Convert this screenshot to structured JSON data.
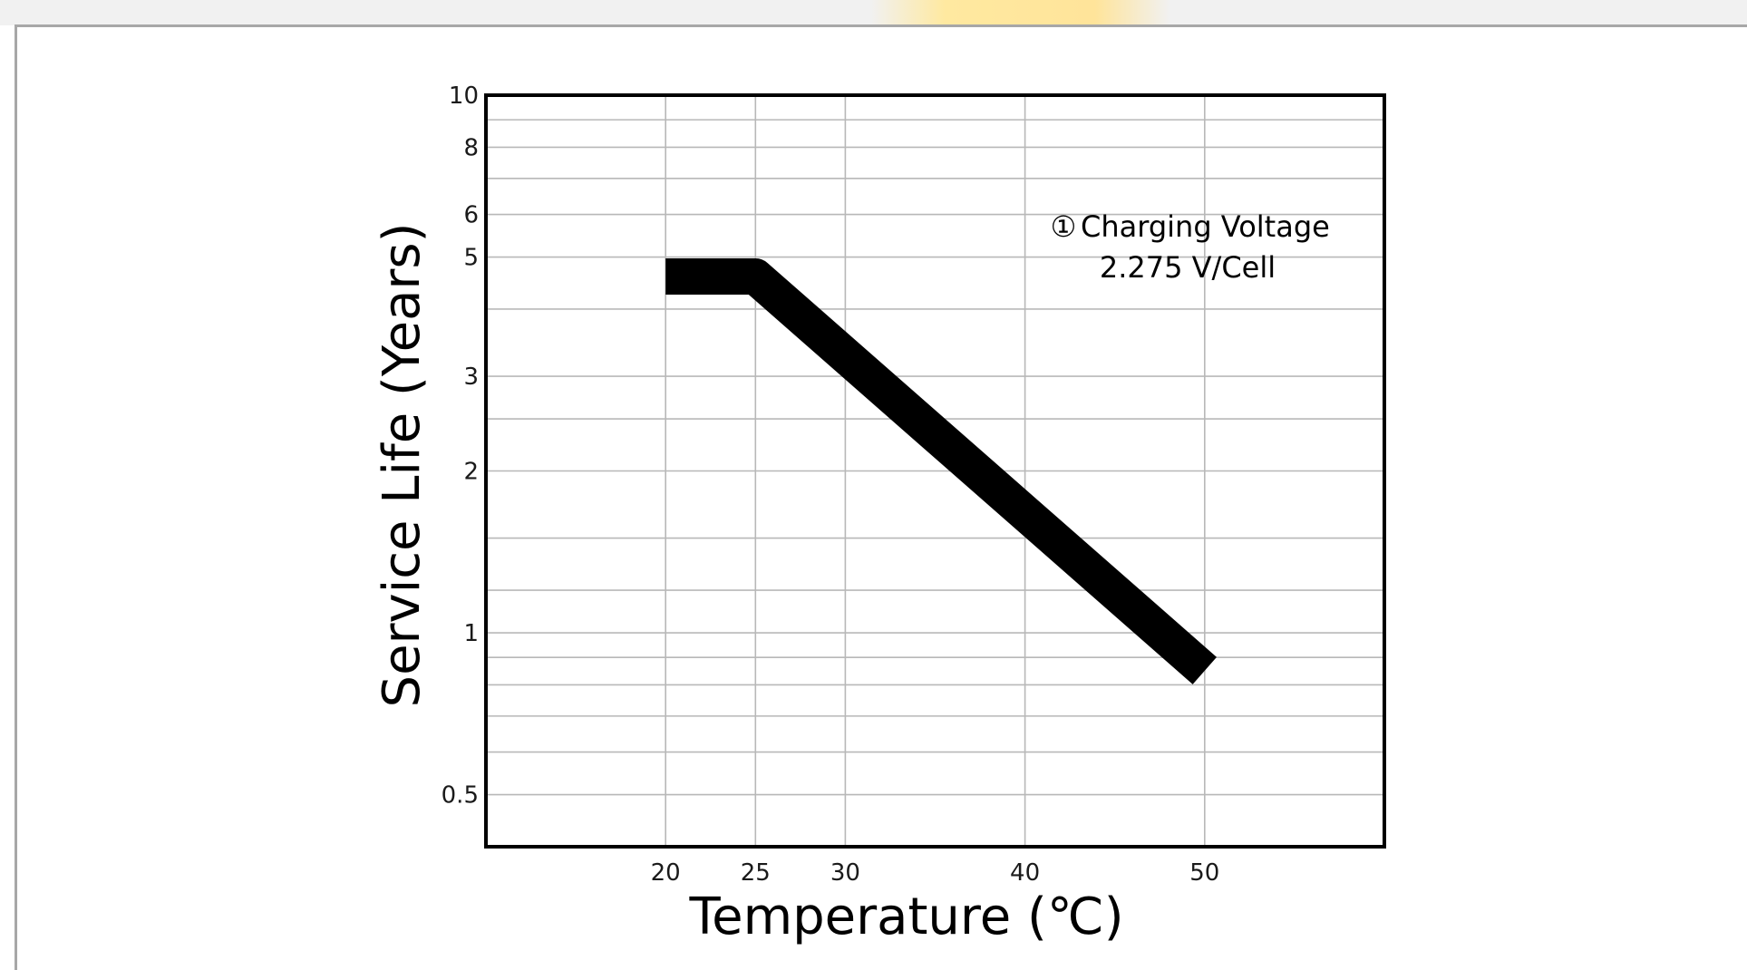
{
  "chart_data": {
    "type": "line",
    "x": [
      20,
      25,
      50
    ],
    "series": [
      {
        "values": [
          4.6,
          4.6,
          0.85
        ]
      }
    ],
    "xlabel": "Temperature (℃)",
    "ylabel": "Service Life (Years)",
    "x_scale": "linear",
    "y_scale": "log",
    "xlim": [
      10,
      60
    ],
    "ylim": [
      0.4,
      10
    ],
    "x_ticks": [
      20,
      25,
      30,
      40,
      50
    ],
    "x_tick_labels": [
      "20",
      "25",
      "30",
      "40",
      "50"
    ],
    "y_ticks": [
      10,
      8,
      6,
      5,
      3,
      2,
      1,
      0.5
    ],
    "y_tick_labels": [
      "10",
      "8",
      "6",
      "5",
      "3",
      "2",
      "1",
      "0.5"
    ],
    "y_grid": [
      10,
      9,
      8,
      7,
      6,
      5,
      4,
      3,
      2.5,
      2,
      1.5,
      1.2,
      1,
      0.9,
      0.8,
      0.7,
      0.6,
      0.5
    ],
    "grid": true,
    "annotation": {
      "marker": "①",
      "line1": "Charging Voltage",
      "line2": "2.275 V/Cell"
    },
    "colors": {
      "line": "#000000",
      "grid": "#b8b8b8",
      "axes": "#000000"
    }
  }
}
